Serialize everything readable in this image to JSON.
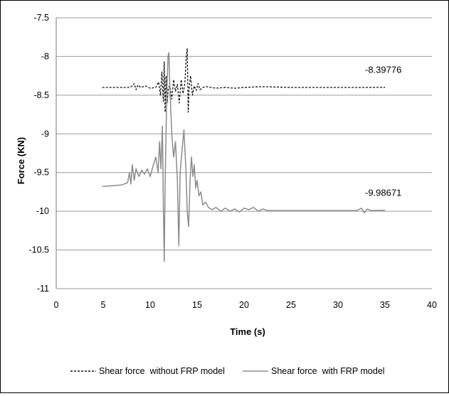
{
  "chart_data": {
    "type": "line",
    "title": "",
    "xlabel": "Time (s)",
    "ylabel": "Force (KN)",
    "xlim": [
      0,
      40
    ],
    "ylim": [
      -11,
      -7.5
    ],
    "x_ticks": [
      0,
      5,
      10,
      15,
      20,
      25,
      30,
      35,
      40
    ],
    "y_ticks": [
      -7.5,
      -8,
      -8.5,
      -9,
      -9.5,
      -10,
      -10.5,
      -11
    ],
    "grid": "horizontal",
    "legend_position": "bottom",
    "series": [
      {
        "name": "Shear force  without FRP model",
        "color": "#111111",
        "style": "dashed",
        "points": [
          [
            4.9,
            -8.4
          ],
          [
            6.0,
            -8.4
          ],
          [
            7.0,
            -8.4
          ],
          [
            7.8,
            -8.4
          ],
          [
            8.1,
            -8.38
          ],
          [
            8.3,
            -8.35
          ],
          [
            8.5,
            -8.43
          ],
          [
            8.7,
            -8.37
          ],
          [
            9.0,
            -8.4
          ],
          [
            9.5,
            -8.38
          ],
          [
            10.0,
            -8.41
          ],
          [
            10.6,
            -8.4
          ],
          [
            10.9,
            -8.33
          ],
          [
            11.1,
            -8.5
          ],
          [
            11.25,
            -8.2
          ],
          [
            11.4,
            -8.58
          ],
          [
            11.5,
            -8.07
          ],
          [
            11.6,
            -8.72
          ],
          [
            11.7,
            -8.25
          ],
          [
            11.8,
            -8.6
          ],
          [
            11.95,
            -8.4
          ],
          [
            12.1,
            -8.38
          ],
          [
            12.3,
            -8.55
          ],
          [
            12.5,
            -8.3
          ],
          [
            12.7,
            -8.45
          ],
          [
            12.9,
            -8.36
          ],
          [
            13.1,
            -8.6
          ],
          [
            13.3,
            -8.3
          ],
          [
            13.5,
            -8.48
          ],
          [
            13.7,
            -8.35
          ],
          [
            13.85,
            -8.0
          ],
          [
            13.95,
            -7.9
          ],
          [
            14.05,
            -8.72
          ],
          [
            14.15,
            -8.4
          ],
          [
            14.3,
            -8.25
          ],
          [
            14.5,
            -8.5
          ],
          [
            14.7,
            -8.38
          ],
          [
            14.9,
            -8.44
          ],
          [
            15.1,
            -8.35
          ],
          [
            15.3,
            -8.43
          ],
          [
            15.6,
            -8.4
          ],
          [
            16.0,
            -8.39
          ],
          [
            17.0,
            -8.41
          ],
          [
            18.0,
            -8.4
          ],
          [
            19.0,
            -8.41
          ],
          [
            20.0,
            -8.4
          ],
          [
            22.0,
            -8.39
          ],
          [
            25.0,
            -8.4
          ],
          [
            28.0,
            -8.4
          ],
          [
            31.0,
            -8.4
          ],
          [
            33.0,
            -8.4
          ],
          [
            35.0,
            -8.398
          ]
        ]
      },
      {
        "name": "Shear force  with FRP model",
        "color": "#8c8c8c",
        "style": "solid",
        "points": [
          [
            4.9,
            -9.68
          ],
          [
            6.0,
            -9.67
          ],
          [
            7.0,
            -9.66
          ],
          [
            7.6,
            -9.63
          ],
          [
            7.8,
            -9.5
          ],
          [
            7.95,
            -9.65
          ],
          [
            8.1,
            -9.4
          ],
          [
            8.3,
            -9.6
          ],
          [
            8.5,
            -9.45
          ],
          [
            8.8,
            -9.55
          ],
          [
            9.1,
            -9.47
          ],
          [
            9.4,
            -9.52
          ],
          [
            9.7,
            -9.45
          ],
          [
            10.0,
            -9.55
          ],
          [
            10.3,
            -9.42
          ],
          [
            10.6,
            -9.3
          ],
          [
            10.85,
            -9.5
          ],
          [
            11.0,
            -9.1
          ],
          [
            11.15,
            -9.45
          ],
          [
            11.3,
            -8.9
          ],
          [
            11.4,
            -9.9
          ],
          [
            11.5,
            -10.65
          ],
          [
            11.6,
            -9.6
          ],
          [
            11.75,
            -8.6
          ],
          [
            11.9,
            -8.0
          ],
          [
            12.0,
            -7.95
          ],
          [
            12.1,
            -8.4
          ],
          [
            12.3,
            -9.0
          ],
          [
            12.5,
            -9.3
          ],
          [
            12.7,
            -9.1
          ],
          [
            12.9,
            -9.6
          ],
          [
            13.05,
            -10.45
          ],
          [
            13.2,
            -9.5
          ],
          [
            13.4,
            -9.2
          ],
          [
            13.6,
            -8.95
          ],
          [
            13.8,
            -9.45
          ],
          [
            13.95,
            -10.0
          ],
          [
            14.1,
            -10.2
          ],
          [
            14.25,
            -9.6
          ],
          [
            14.4,
            -9.3
          ],
          [
            14.55,
            -9.55
          ],
          [
            14.7,
            -9.4
          ],
          [
            14.85,
            -9.7
          ],
          [
            15.0,
            -9.6
          ],
          [
            15.2,
            -9.8
          ],
          [
            15.4,
            -9.75
          ],
          [
            15.6,
            -9.92
          ],
          [
            15.9,
            -9.88
          ],
          [
            16.2,
            -9.95
          ],
          [
            16.6,
            -9.98
          ],
          [
            17.0,
            -9.95
          ],
          [
            17.5,
            -10.0
          ],
          [
            18.0,
            -9.96
          ],
          [
            18.5,
            -10.0
          ],
          [
            19.0,
            -9.97
          ],
          [
            19.5,
            -10.01
          ],
          [
            20.0,
            -9.96
          ],
          [
            20.5,
            -9.98
          ],
          [
            21.0,
            -9.95
          ],
          [
            21.5,
            -10.0
          ],
          [
            22.0,
            -9.97
          ],
          [
            22.5,
            -9.99
          ],
          [
            24.0,
            -9.99
          ],
          [
            26.0,
            -9.99
          ],
          [
            28.0,
            -9.99
          ],
          [
            30.0,
            -9.99
          ],
          [
            32.0,
            -9.99
          ],
          [
            32.5,
            -9.96
          ],
          [
            32.8,
            -10.02
          ],
          [
            33.1,
            -9.97
          ],
          [
            33.5,
            -9.99
          ],
          [
            35.0,
            -9.987
          ]
        ]
      }
    ],
    "annotations": [
      {
        "text": "-8.39776",
        "x": 35,
        "y": -8.39776
      },
      {
        "text": "-9.98671",
        "x": 35,
        "y": -9.98671
      }
    ]
  }
}
